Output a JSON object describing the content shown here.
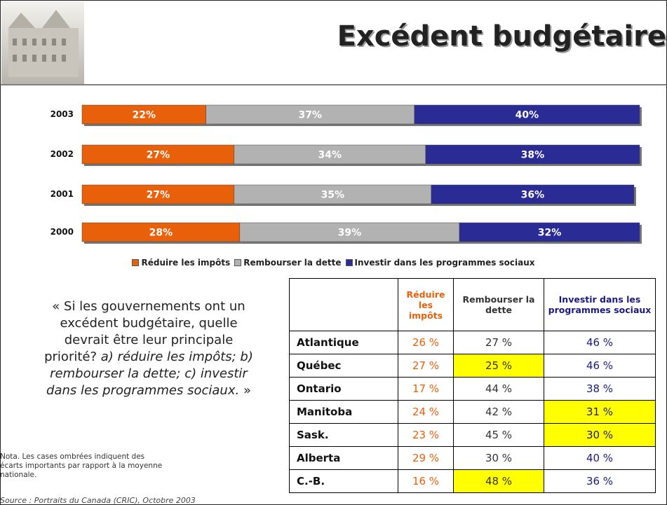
{
  "header": {
    "title": "Excédent budgétaire"
  },
  "chart_data": {
    "type": "bar",
    "orientation": "horizontal",
    "stacked": true,
    "categories": [
      "2003",
      "2002",
      "2001",
      "2000"
    ],
    "series": [
      {
        "name": "Réduire les impôts",
        "color": "#e8600a",
        "values": [
          22,
          27,
          27,
          28
        ],
        "value_labels": [
          "22%",
          "27%",
          "27%",
          "28%"
        ]
      },
      {
        "name": "Rembourser la dette",
        "color": "#b2b2b2",
        "values": [
          37,
          34,
          35,
          39
        ],
        "value_labels": [
          "37%",
          "34%",
          "35%",
          "39%"
        ]
      },
      {
        "name": "Investir dans les programmes sociaux",
        "color": "#2b2b96",
        "values": [
          40,
          38,
          36,
          32
        ],
        "value_labels": [
          "40%",
          "38%",
          "36%",
          "32%"
        ]
      }
    ],
    "xlim": [
      0,
      100
    ]
  },
  "quote": {
    "text": "« Si les gouvernements ont un excédent budgétaire, quelle devrait être leur principale priorité?",
    "italic": "a) réduire les impôts; b) rembourser la dette; c) investir dans les programmes sociaux.",
    "close": "»"
  },
  "table": {
    "columns": [
      "Réduire les impôts",
      "Rembourser la dette",
      "Investir dans les programmes sociaux"
    ],
    "column_colors": [
      "#e8600a",
      "#333333",
      "#1a1a80"
    ],
    "highlight_color": "#ffff00",
    "rows": [
      {
        "region": "Atlantique",
        "cells": [
          "26 %",
          "27 %",
          "46 %"
        ],
        "highlight": [
          false,
          false,
          false
        ]
      },
      {
        "region": "Québec",
        "cells": [
          "27 %",
          "25 %",
          "46 %"
        ],
        "highlight": [
          false,
          true,
          false
        ]
      },
      {
        "region": "Ontario",
        "cells": [
          "17 %",
          "44 %",
          "38 %"
        ],
        "highlight": [
          false,
          false,
          false
        ]
      },
      {
        "region": "Manitoba",
        "cells": [
          "24 %",
          "42 %",
          "31 %"
        ],
        "highlight": [
          false,
          false,
          true
        ]
      },
      {
        "region": "Sask.",
        "cells": [
          "23 %",
          "45 %",
          "30 %"
        ],
        "highlight": [
          false,
          false,
          true
        ]
      },
      {
        "region": "Alberta",
        "cells": [
          "29 %",
          "30 %",
          "40 %"
        ],
        "highlight": [
          false,
          false,
          false
        ]
      },
      {
        "region": "C.-B.",
        "cells": [
          "16 %",
          "48 %",
          "36 %"
        ],
        "highlight": [
          false,
          true,
          false
        ]
      }
    ]
  },
  "note": "Nota. Les cases ombrées indiquent des écarts importants par rapport à la moyenne nationale.",
  "source": "Source : Portraits du Canada (CRIC), Octobre 2003"
}
